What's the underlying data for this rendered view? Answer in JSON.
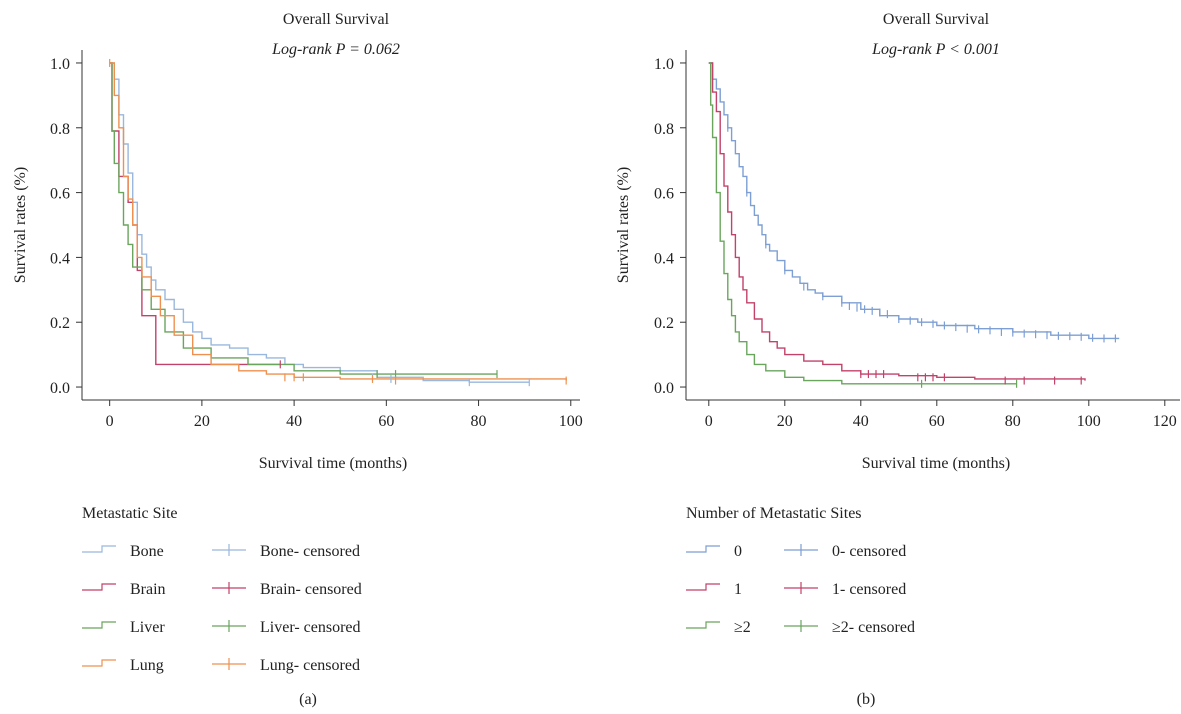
{
  "chart_data": [
    {
      "panel_label": "(a)",
      "type": "line",
      "subtype": "kaplan-meier step",
      "title": "Overall Survival",
      "subtitle": "Log-rank P = 0.062",
      "xlabel": "Survival time (months)",
      "ylabel": "Survival rates (%)",
      "xlim": [
        -6,
        102
      ],
      "ylim": [
        -0.04,
        1.04
      ],
      "xticks": [
        0,
        20,
        40,
        60,
        80,
        100
      ],
      "yticks": [
        0.0,
        0.2,
        0.4,
        0.6,
        0.8,
        1.0
      ],
      "ytick_labels": [
        "0.0",
        "0.2",
        "0.4",
        "0.6",
        "0.8",
        "1.0"
      ],
      "grid": false,
      "legend_title": "Metastatic Site",
      "legend_placement": "below",
      "series": [
        {
          "name": "Bone",
          "censored_label": "Bone- censored",
          "color": "#9ab8dd",
          "points": [
            [
              0,
              1.0
            ],
            [
              1,
              0.95
            ],
            [
              2,
              0.84
            ],
            [
              3,
              0.75
            ],
            [
              4,
              0.66
            ],
            [
              5,
              0.57
            ],
            [
              6,
              0.47
            ],
            [
              7,
              0.41
            ],
            [
              8,
              0.37
            ],
            [
              9,
              0.33
            ],
            [
              10,
              0.3
            ],
            [
              12,
              0.27
            ],
            [
              14,
              0.24
            ],
            [
              16,
              0.2
            ],
            [
              18,
              0.17
            ],
            [
              20,
              0.15
            ],
            [
              22,
              0.13
            ],
            [
              26,
              0.12
            ],
            [
              30,
              0.1
            ],
            [
              34,
              0.09
            ],
            [
              38,
              0.07
            ],
            [
              42,
              0.06
            ],
            [
              50,
              0.05
            ],
            [
              58,
              0.03
            ],
            [
              68,
              0.02
            ],
            [
              78,
              0.015
            ],
            [
              91,
              0.015
            ]
          ],
          "censored": [
            [
              57,
              0.03
            ],
            [
              61,
              0.025
            ],
            [
              78,
              0.015
            ],
            [
              91,
              0.015
            ]
          ]
        },
        {
          "name": "Brain",
          "censored_label": "Brain- censored",
          "color": "#c2426a",
          "points": [
            [
              0,
              1.0
            ],
            [
              0.5,
              0.79
            ],
            [
              2,
              0.65
            ],
            [
              4,
              0.57
            ],
            [
              5,
              0.5
            ],
            [
              6,
              0.36
            ],
            [
              7,
              0.22
            ],
            [
              10,
              0.07
            ],
            [
              37,
              0.07
            ]
          ],
          "censored": [
            [
              37,
              0.07
            ]
          ]
        },
        {
          "name": "Liver",
          "censored_label": "Liver- censored",
          "color": "#6aa55e",
          "points": [
            [
              0,
              1.0
            ],
            [
              0.5,
              0.79
            ],
            [
              1,
              0.69
            ],
            [
              2,
              0.6
            ],
            [
              3,
              0.5
            ],
            [
              4,
              0.44
            ],
            [
              5,
              0.37
            ],
            [
              7,
              0.3
            ],
            [
              9,
              0.24
            ],
            [
              12,
              0.17
            ],
            [
              16,
              0.12
            ],
            [
              22,
              0.09
            ],
            [
              30,
              0.07
            ],
            [
              40,
              0.05
            ],
            [
              50,
              0.04
            ],
            [
              84,
              0.04
            ]
          ],
          "censored": [
            [
              58,
              0.04
            ],
            [
              62,
              0.04
            ],
            [
              84,
              0.04
            ]
          ]
        },
        {
          "name": "Lung",
          "censored_label": "Lung- censored",
          "color": "#ee9150",
          "points": [
            [
              0,
              1.0
            ],
            [
              1,
              0.9
            ],
            [
              2,
              0.8
            ],
            [
              3,
              0.65
            ],
            [
              4,
              0.58
            ],
            [
              5,
              0.5
            ],
            [
              6,
              0.4
            ],
            [
              7,
              0.34
            ],
            [
              9,
              0.28
            ],
            [
              11,
              0.22
            ],
            [
              14,
              0.16
            ],
            [
              18,
              0.1
            ],
            [
              22,
              0.07
            ],
            [
              28,
              0.05
            ],
            [
              34,
              0.04
            ],
            [
              40,
              0.03
            ],
            [
              50,
              0.025
            ],
            [
              99,
              0.02
            ]
          ],
          "censored": [
            [
              0,
              1.0
            ],
            [
              38,
              0.03
            ],
            [
              40,
              0.03
            ],
            [
              42,
              0.03
            ],
            [
              57,
              0.025
            ],
            [
              62,
              0.02
            ],
            [
              99,
              0.02
            ]
          ]
        }
      ]
    },
    {
      "panel_label": "(b)",
      "type": "line",
      "subtype": "kaplan-meier step",
      "title": "Overall Survival",
      "subtitle": "Log-rank P < 0.001",
      "xlabel": "Survival time (months)",
      "ylabel": "Survival rates (%)",
      "xlim": [
        -6,
        124
      ],
      "ylim": [
        -0.04,
        1.04
      ],
      "xticks": [
        0,
        20,
        40,
        60,
        80,
        100,
        120
      ],
      "yticks": [
        0.0,
        0.2,
        0.4,
        0.6,
        0.8,
        1.0
      ],
      "ytick_labels": [
        "0.0",
        "0.2",
        "0.4",
        "0.6",
        "0.8",
        "1.0"
      ],
      "grid": false,
      "legend_title": "Number of Metastatic Sites",
      "legend_placement": "below",
      "series": [
        {
          "name": "0",
          "censored_label": "0- censored",
          "color": "#7d9fd3",
          "points": [
            [
              0,
              1.0
            ],
            [
              1,
              0.95
            ],
            [
              2,
              0.92
            ],
            [
              3,
              0.88
            ],
            [
              4,
              0.84
            ],
            [
              5,
              0.8
            ],
            [
              6,
              0.76
            ],
            [
              7,
              0.72
            ],
            [
              8,
              0.68
            ],
            [
              9,
              0.65
            ],
            [
              10,
              0.6
            ],
            [
              11,
              0.56
            ],
            [
              12,
              0.53
            ],
            [
              13,
              0.5
            ],
            [
              14,
              0.47
            ],
            [
              15,
              0.44
            ],
            [
              16,
              0.42
            ],
            [
              18,
              0.39
            ],
            [
              20,
              0.36
            ],
            [
              22,
              0.34
            ],
            [
              24,
              0.32
            ],
            [
              26,
              0.3
            ],
            [
              28,
              0.29
            ],
            [
              30,
              0.28
            ],
            [
              35,
              0.26
            ],
            [
              40,
              0.24
            ],
            [
              45,
              0.22
            ],
            [
              50,
              0.21
            ],
            [
              55,
              0.2
            ],
            [
              60,
              0.19
            ],
            [
              70,
              0.18
            ],
            [
              80,
              0.17
            ],
            [
              90,
              0.16
            ],
            [
              100,
              0.15
            ],
            [
              108,
              0.15
            ]
          ],
          "censored": [
            [
              5,
              0.8
            ],
            [
              10,
              0.6
            ],
            [
              15,
              0.44
            ],
            [
              20,
              0.36
            ],
            [
              25,
              0.31
            ],
            [
              30,
              0.28
            ],
            [
              35,
              0.26
            ],
            [
              37,
              0.25
            ],
            [
              39,
              0.245
            ],
            [
              41,
              0.24
            ],
            [
              43,
              0.235
            ],
            [
              45,
              0.23
            ],
            [
              47,
              0.225
            ],
            [
              50,
              0.21
            ],
            [
              53,
              0.205
            ],
            [
              56,
              0.2
            ],
            [
              59,
              0.195
            ],
            [
              62,
              0.19
            ],
            [
              65,
              0.185
            ],
            [
              68,
              0.18
            ],
            [
              71,
              0.178
            ],
            [
              74,
              0.175
            ],
            [
              77,
              0.17
            ],
            [
              80,
              0.168
            ],
            [
              83,
              0.165
            ],
            [
              86,
              0.163
            ],
            [
              89,
              0.16
            ],
            [
              92,
              0.158
            ],
            [
              95,
              0.157
            ],
            [
              98,
              0.155
            ],
            [
              101,
              0.152
            ],
            [
              104,
              0.15
            ],
            [
              107,
              0.15
            ]
          ]
        },
        {
          "name": "1",
          "censored_label": "1- censored",
          "color": "#c2426a",
          "points": [
            [
              0,
              1.0
            ],
            [
              1,
              0.91
            ],
            [
              2,
              0.85
            ],
            [
              3,
              0.72
            ],
            [
              4,
              0.62
            ],
            [
              5,
              0.54
            ],
            [
              6,
              0.47
            ],
            [
              7,
              0.4
            ],
            [
              8,
              0.34
            ],
            [
              9,
              0.3
            ],
            [
              10,
              0.26
            ],
            [
              12,
              0.21
            ],
            [
              14,
              0.17
            ],
            [
              16,
              0.14
            ],
            [
              18,
              0.12
            ],
            [
              20,
              0.1
            ],
            [
              25,
              0.08
            ],
            [
              30,
              0.07
            ],
            [
              35,
              0.05
            ],
            [
              40,
              0.04
            ],
            [
              50,
              0.035
            ],
            [
              60,
              0.03
            ],
            [
              70,
              0.025
            ],
            [
              99,
              0.02
            ]
          ],
          "censored": [
            [
              40,
              0.04
            ],
            [
              42,
              0.04
            ],
            [
              44,
              0.04
            ],
            [
              46,
              0.04
            ],
            [
              55,
              0.03
            ],
            [
              57,
              0.03
            ],
            [
              59,
              0.03
            ],
            [
              62,
              0.03
            ],
            [
              78,
              0.02
            ],
            [
              83,
              0.02
            ],
            [
              91,
              0.02
            ],
            [
              98,
              0.02
            ]
          ]
        },
        {
          "name": "≥2",
          "censored_label": "≥2- censored",
          "color": "#6aa55e",
          "points": [
            [
              0,
              1.0
            ],
            [
              0.5,
              0.87
            ],
            [
              1,
              0.77
            ],
            [
              2,
              0.6
            ],
            [
              3,
              0.45
            ],
            [
              4,
              0.35
            ],
            [
              5,
              0.27
            ],
            [
              6,
              0.22
            ],
            [
              7,
              0.17
            ],
            [
              8,
              0.14
            ],
            [
              10,
              0.1
            ],
            [
              12,
              0.07
            ],
            [
              15,
              0.05
            ],
            [
              20,
              0.03
            ],
            [
              25,
              0.02
            ],
            [
              35,
              0.01
            ],
            [
              81,
              0.01
            ]
          ],
          "censored": [
            [
              56,
              0.01
            ],
            [
              81,
              0.01
            ]
          ]
        }
      ]
    }
  ]
}
